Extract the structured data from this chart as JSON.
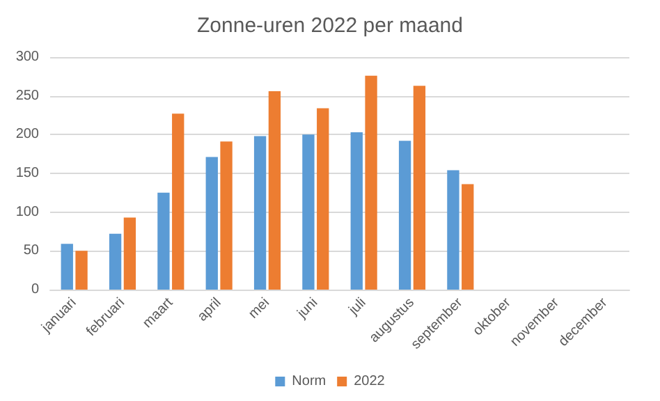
{
  "chart_data": {
    "type": "bar",
    "title": "Zonne-uren 2022 per maand",
    "categories": [
      "januari",
      "februari",
      "maart",
      "april",
      "mei",
      "juni",
      "juli",
      "augustus",
      "september",
      "oktober",
      "november",
      "december"
    ],
    "series": [
      {
        "name": "Norm",
        "color": "#5b9bd5",
        "values": [
          59,
          72,
          125,
          171,
          198,
          200,
          203,
          192,
          154,
          null,
          null,
          null
        ]
      },
      {
        "name": "2022",
        "color": "#ed7d31",
        "values": [
          50,
          93,
          227,
          191,
          256,
          234,
          276,
          263,
          136,
          null,
          null,
          null
        ]
      }
    ],
    "ylim": [
      0,
      300
    ],
    "yticks": [
      0,
      50,
      100,
      150,
      200,
      250,
      300
    ],
    "grid": "y",
    "legend": "bottom"
  }
}
